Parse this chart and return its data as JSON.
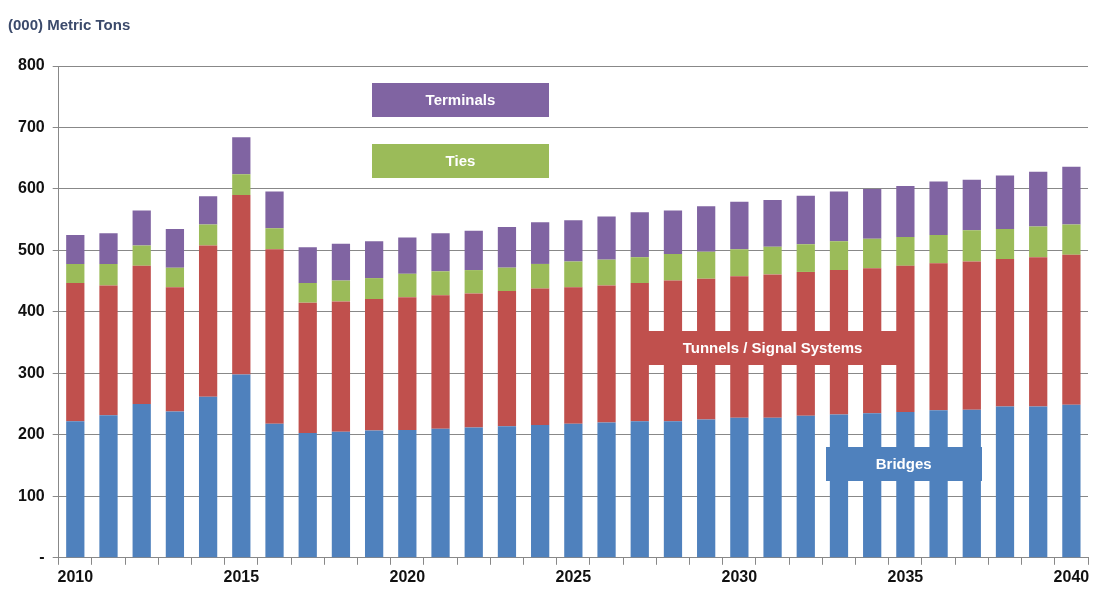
{
  "chart_data": {
    "type": "bar",
    "ylabel": "(000) Metric Tons",
    "stacked": true,
    "grid": "y",
    "legend": false,
    "categories": [
      "2010",
      null,
      null,
      null,
      null,
      "2015",
      null,
      null,
      null,
      null,
      "2020",
      null,
      null,
      null,
      null,
      "2025",
      null,
      null,
      null,
      null,
      "2030",
      null,
      null,
      null,
      null,
      "2035",
      null,
      null,
      null,
      null,
      "2040"
    ],
    "ylim": [
      0,
      800
    ],
    "yticks": [
      {
        "value": 0,
        "label": "-"
      },
      100,
      200,
      300,
      400,
      500,
      600,
      700,
      800
    ],
    "series": [
      {
        "name": "Bridges",
        "color": "#4f81bd",
        "values": [
          222,
          232,
          250,
          238,
          262,
          298,
          218,
          203,
          205,
          207,
          208,
          210,
          212,
          214,
          216,
          218,
          220,
          222,
          222,
          225,
          228,
          228,
          231,
          233,
          235,
          237,
          240,
          241,
          246,
          246,
          249
        ]
      },
      {
        "name": "Tunnels / Signal Systems",
        "color": "#c0504d",
        "values": [
          225,
          211,
          225,
          202,
          246,
          292,
          284,
          212,
          212,
          214,
          216,
          217,
          218,
          220,
          222,
          222,
          223,
          225,
          229,
          229,
          230,
          233,
          234,
          235,
          236,
          238,
          239,
          241,
          240,
          243,
          244
        ]
      },
      {
        "name": "Ties",
        "color": "#9bbb59",
        "values": [
          31,
          35,
          33,
          32,
          34,
          34,
          34,
          32,
          34,
          34,
          38,
          39,
          38,
          38,
          40,
          42,
          42,
          42,
          43,
          44,
          44,
          45,
          45,
          47,
          48,
          47,
          46,
          51,
          49,
          50,
          49
        ]
      },
      {
        "name": "Terminals",
        "color": "#8064a2",
        "values": [
          47,
          50,
          57,
          63,
          46,
          60,
          60,
          58,
          60,
          60,
          59,
          62,
          64,
          66,
          68,
          67,
          70,
          73,
          71,
          74,
          77,
          76,
          79,
          81,
          81,
          83,
          87,
          82,
          87,
          89,
          94
        ]
      }
    ]
  }
}
